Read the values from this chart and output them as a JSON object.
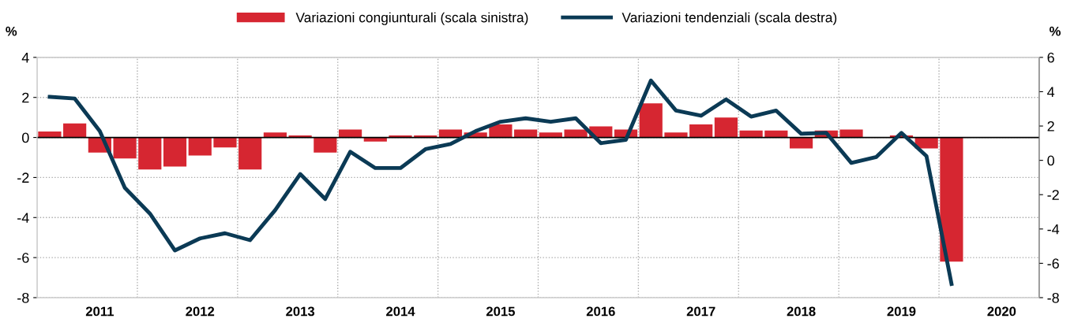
{
  "chart_data": {
    "type": "bar",
    "ylabel": "%",
    "y2label": "%",
    "categories": [
      null,
      null,
      "2011",
      null,
      null,
      null,
      "2012",
      null,
      null,
      null,
      "2013",
      null,
      null,
      null,
      "2014",
      null,
      null,
      null,
      "2015",
      null,
      null,
      null,
      "2016",
      null,
      null,
      null,
      "2017",
      null,
      null,
      null,
      "2018",
      null,
      null,
      null,
      "2019",
      null,
      null,
      null,
      "2020",
      null
    ],
    "series": [
      {
        "name": "Variazioni congiunturali (scala sinistra)",
        "color": "#d62631",
        "values": [
          0.3,
          0.7,
          -0.75,
          -1.05,
          -1.6,
          -1.45,
          -0.9,
          -0.5,
          -1.6,
          0.25,
          0.1,
          -0.75,
          0.4,
          -0.2,
          0.1,
          0.1,
          0.4,
          0.25,
          0.65,
          0.4,
          0.25,
          0.4,
          0.55,
          0.4,
          1.7,
          0.25,
          0.65,
          1.0,
          0.35,
          0.35,
          -0.55,
          0.35,
          0.4,
          null,
          0.1,
          -0.55,
          -6.2,
          null,
          null,
          null
        ]
      },
      {
        "name": "Variazioni tendenziali (scala destra)",
        "type": "line",
        "axis": "y2",
        "color": "#0b3a55",
        "values": [
          3.7,
          3.6,
          1.7,
          -1.6,
          -3.1,
          -5.25,
          -4.55,
          -4.25,
          -4.65,
          -2.9,
          -0.8,
          -2.25,
          0.5,
          -0.45,
          -0.45,
          0.65,
          0.95,
          1.7,
          2.25,
          2.45,
          2.25,
          2.45,
          1.0,
          1.2,
          4.65,
          2.9,
          2.6,
          3.55,
          2.55,
          2.9,
          1.55,
          1.6,
          -0.15,
          0.2,
          1.6,
          0.25,
          -7.2,
          null,
          null,
          null
        ]
      }
    ],
    "ylim": [
      -8,
      4
    ],
    "yticks": [
      -8,
      -6,
      -4,
      -2,
      0,
      2,
      4
    ],
    "y2lim": [
      -8,
      6
    ],
    "y2ticks": [
      -8,
      -6,
      -4,
      -2,
      0,
      2,
      4,
      6
    ],
    "ref_lines": [
      {
        "axis": "y",
        "value": 0,
        "color": "#000000"
      }
    ],
    "grid": true,
    "legend": "top",
    "marker": "none",
    "line_style": "solid"
  }
}
